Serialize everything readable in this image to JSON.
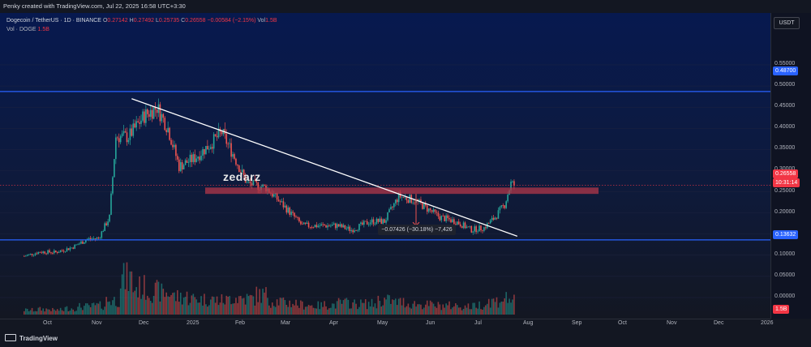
{
  "header": {
    "credit": "Penky created with TradingView.com, Jul 22, 2025 16:58 UTC+3:30"
  },
  "legend": {
    "symbol": "Dogecoin / TetherUS · 1D · BINANCE",
    "o_label": "O",
    "o": "0.27142",
    "h_label": "H",
    "h": "0.27492",
    "l_label": "L",
    "l": "0.25735",
    "c_label": "C",
    "c": "0.26558",
    "change": "−0.00584 (−2.15%)",
    "vol_label": "Vol",
    "vol": "1.5B",
    "vol_series": "Vol · DOGE",
    "vol_series_value": "1.5B"
  },
  "price_scale": {
    "currency_button": "USDT",
    "ticks": [
      "0.55000",
      "0.50000",
      "0.45000",
      "0.40000",
      "0.35000",
      "0.30000",
      "0.25000",
      "0.20000",
      "0.15000",
      "0.10000",
      "0.05000",
      "0.00000"
    ],
    "badges": {
      "upper_line": "0.48700",
      "last_price": "0.26558",
      "countdown": "10:31:14",
      "lower_line": "0.13632",
      "volume": "1.5B"
    }
  },
  "time_axis": {
    "labels": [
      "Oct",
      "Nov",
      "Dec",
      "2025",
      "Feb",
      "Mar",
      "Apr",
      "May",
      "Jun",
      "Jul",
      "Aug",
      "Sep",
      "Oct",
      "Nov",
      "Dec",
      "2026"
    ]
  },
  "annotations": {
    "watermark": "zedarz",
    "measure": "−0.07426 (−30.18%) −7,426"
  },
  "footer": {
    "brand": "TradingView"
  },
  "colors": {
    "up": "#26a69a",
    "down": "#ef5350",
    "horizontal_line": "#2962ff",
    "trendline": "#ffffff",
    "resistance_zone": "#b2374a",
    "background_top": "#0a1a4a",
    "background_bottom": "#131722"
  },
  "chart_data": {
    "type": "candlestick",
    "ylim": [
      0.0,
      0.58
    ],
    "horizontal_levels": [
      0.487,
      0.13632
    ],
    "resistance_zone": [
      0.245,
      0.26
    ],
    "last_price": 0.26558,
    "trendline": {
      "start": [
        "2024-11-22",
        0.47
      ],
      "end": [
        "2025-07-24",
        0.145
      ]
    },
    "measure": {
      "change": -0.07426,
      "percent": -30.18
    },
    "close_series": [
      [
        "2024-09-15",
        0.098
      ],
      [
        "2024-09-25",
        0.108
      ],
      [
        "2024-10-05",
        0.107
      ],
      [
        "2024-10-15",
        0.118
      ],
      [
        "2024-10-25",
        0.138
      ],
      [
        "2024-11-01",
        0.14
      ],
      [
        "2024-11-08",
        0.19
      ],
      [
        "2024-11-12",
        0.38
      ],
      [
        "2024-11-20",
        0.38
      ],
      [
        "2024-11-30",
        0.43
      ],
      [
        "2024-12-08",
        0.45
      ],
      [
        "2024-12-15",
        0.4
      ],
      [
        "2024-12-22",
        0.31
      ],
      [
        "2025-01-01",
        0.33
      ],
      [
        "2025-01-10",
        0.36
      ],
      [
        "2025-01-18",
        0.39
      ],
      [
        "2025-01-25",
        0.34
      ],
      [
        "2025-02-03",
        0.27
      ],
      [
        "2025-02-15",
        0.26
      ],
      [
        "2025-02-28",
        0.21
      ],
      [
        "2025-03-10",
        0.17
      ],
      [
        "2025-03-20",
        0.17
      ],
      [
        "2025-04-01",
        0.17
      ],
      [
        "2025-04-10",
        0.16
      ],
      [
        "2025-04-22",
        0.18
      ],
      [
        "2025-05-01",
        0.18
      ],
      [
        "2025-05-10",
        0.24
      ],
      [
        "2025-05-20",
        0.23
      ],
      [
        "2025-05-28",
        0.21
      ],
      [
        "2025-06-05",
        0.19
      ],
      [
        "2025-06-15",
        0.18
      ],
      [
        "2025-06-25",
        0.16
      ],
      [
        "2025-07-03",
        0.165
      ],
      [
        "2025-07-10",
        0.19
      ],
      [
        "2025-07-16",
        0.22
      ],
      [
        "2025-07-20",
        0.27
      ],
      [
        "2025-07-22",
        0.26558
      ]
    ],
    "volume_series": [
      0.5,
      0.6,
      0.5,
      0.7,
      0.9,
      1.0,
      1.6,
      4.0,
      3.0,
      2.6,
      2.4,
      2.0,
      1.8,
      1.7,
      1.6,
      1.9,
      1.8,
      2.2,
      1.5,
      1.3,
      1.1,
      1.0,
      1.1,
      1.3,
      1.2,
      1.2,
      1.6,
      1.4,
      1.2,
      1.1,
      1.0,
      1.0,
      0.9,
      1.1,
      1.5,
      1.8,
      1.5
    ]
  }
}
